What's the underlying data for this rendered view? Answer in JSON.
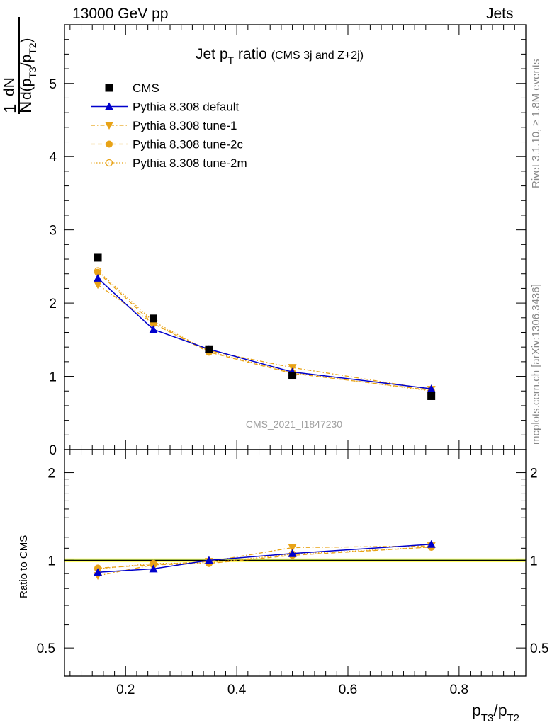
{
  "header": {
    "left": "13000 GeV pp",
    "right": "Jets"
  },
  "side_labels": {
    "rivet": "Rivet 3.1.10, ≥ 1.8M events",
    "mcplots": "mcplots.cern.ch [arXiv:1306.3436]"
  },
  "watermark": "CMS_2021_I1847230",
  "colors": {
    "cms": "#000000",
    "default": "#0000cc",
    "tunes": "#e8a317",
    "band_yellow": "#ffff66",
    "band_green": "#99e566"
  },
  "chart_data": [
    {
      "type": "line",
      "panel": "main",
      "title": "Jet p_T ratio (CMS 3j and Z+2j)",
      "title_parts": {
        "main": "Jet p",
        "sub": "T",
        "after": " ratio",
        "small": "(CMS 3j and Z+2j)"
      },
      "ylabel_parts": {
        "num": "1",
        "den": "N",
        "dnum": "dN",
        "dden_pre": "d(p",
        "s1": "T3",
        "mid": "/p",
        "s2": "T2",
        "close": ")"
      },
      "xlim": [
        0.09,
        0.92
      ],
      "ylim": [
        0,
        5.8
      ],
      "yticks": [
        0,
        1,
        2,
        3,
        4,
        5
      ],
      "ytick_labels": [
        "0",
        "1",
        "2",
        "3",
        "4",
        "5"
      ],
      "legend_position": "top-left",
      "series": [
        {
          "name": "CMS",
          "style": "data",
          "marker": "square",
          "x": [
            0.15,
            0.25,
            0.35,
            0.5,
            0.75
          ],
          "y": [
            2.62,
            1.79,
            1.37,
            1.01,
            0.73
          ]
        },
        {
          "name": "Pythia 8.308 default",
          "style": "solid",
          "marker": "triangle-up",
          "x": [
            0.15,
            0.25,
            0.35,
            0.5,
            0.75
          ],
          "y": [
            2.34,
            1.64,
            1.37,
            1.06,
            0.83
          ]
        },
        {
          "name": "Pythia 8.308 tune-1",
          "style": "dashdot",
          "marker": "triangle-down",
          "x": [
            0.15,
            0.25,
            0.35,
            0.5,
            0.75
          ],
          "y": [
            2.25,
            1.72,
            1.35,
            1.12,
            0.82
          ]
        },
        {
          "name": "Pythia 8.308 tune-2c",
          "style": "dashed",
          "marker": "circle",
          "x": [
            0.15,
            0.25,
            0.35,
            0.5,
            0.75
          ],
          "y": [
            2.42,
            1.72,
            1.33,
            1.04,
            0.81
          ]
        },
        {
          "name": "Pythia 8.308 tune-2m",
          "style": "dotted",
          "marker": "circle-open",
          "x": [
            0.15,
            0.25,
            0.35,
            0.5,
            0.75
          ],
          "y": [
            2.44,
            1.75,
            1.34,
            1.05,
            0.8
          ]
        }
      ]
    },
    {
      "type": "line",
      "panel": "ratio",
      "ylabel": "Ratio to CMS",
      "xlabel_parts": {
        "p1": "p",
        "s1": "T3",
        "mid": "/p",
        "s2": "T2"
      },
      "xlim": [
        0.09,
        0.92
      ],
      "ylim": [
        0.4,
        2.4
      ],
      "log_y": true,
      "xticks": [
        0.2,
        0.4,
        0.6,
        0.8
      ],
      "xtick_labels": [
        "0.2",
        "0.4",
        "0.6",
        "0.8"
      ],
      "yticks": [
        0.5,
        1,
        2
      ],
      "ytick_labels": [
        "0.5",
        "1",
        "2"
      ],
      "band": [
        0.985,
        1.015
      ],
      "series": [
        {
          "name": "Pythia 8.308 default",
          "style": "solid",
          "marker": "triangle-up",
          "x": [
            0.15,
            0.25,
            0.35,
            0.5,
            0.75
          ],
          "y": [
            0.91,
            0.935,
            1.0,
            1.055,
            1.135
          ]
        },
        {
          "name": "Pythia 8.308 tune-1",
          "style": "dashdot",
          "marker": "triangle-down",
          "x": [
            0.15,
            0.25,
            0.35,
            0.5,
            0.75
          ],
          "y": [
            0.885,
            0.965,
            0.99,
            1.105,
            1.12
          ]
        },
        {
          "name": "Pythia 8.308 tune-2c",
          "style": "dashed",
          "marker": "circle",
          "x": [
            0.15,
            0.25,
            0.35,
            0.5,
            0.75
          ],
          "y": [
            0.94,
            0.965,
            0.975,
            1.04,
            1.11
          ]
        },
        {
          "name": "Pythia 8.308 tune-2m",
          "style": "dotted",
          "marker": "circle-open",
          "x": [
            0.15,
            0.25,
            0.35,
            0.5,
            0.75
          ],
          "y": [
            0.935,
            0.975,
            0.98,
            1.05,
            1.11
          ]
        }
      ]
    }
  ]
}
